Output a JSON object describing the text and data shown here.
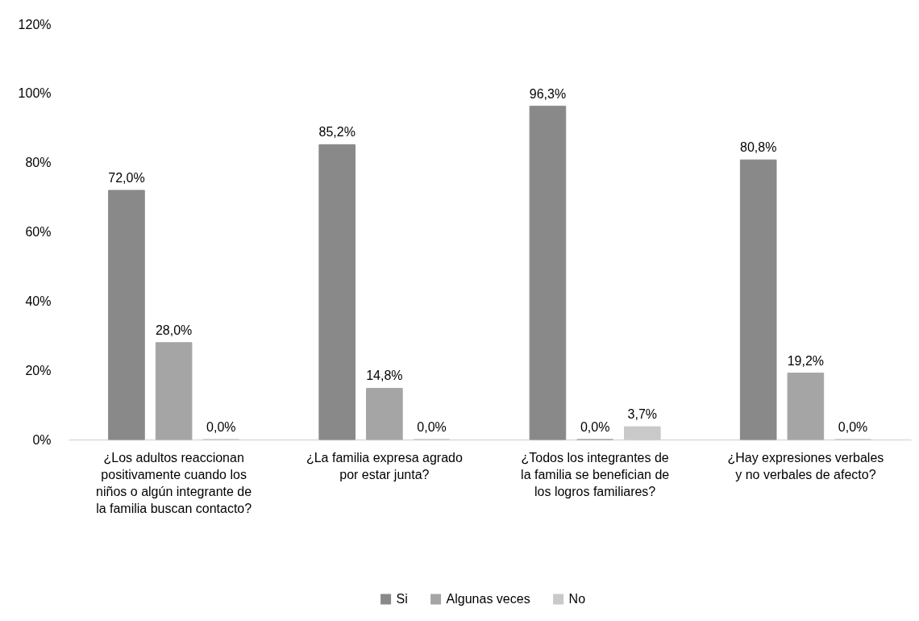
{
  "chart_data": {
    "type": "bar",
    "categories": [
      "¿Los adultos reaccionan positivamente cuando los niños o algún integrante de la familia buscan contacto?",
      "¿La familia  expresa agrado por estar junta?",
      "¿Todos los integrantes de la familia se benefician de los logros familiares?",
      "¿Hay expresiones verbales y no verbales de afecto?"
    ],
    "series": [
      {
        "name": "Si",
        "color": "#898989",
        "values": [
          72.0,
          85.2,
          96.3,
          80.8
        ],
        "value_labels": [
          "72,0%",
          "85,2%",
          "96,3%",
          "80,8%"
        ]
      },
      {
        "name": "Algunas veces",
        "color": "#a5a5a5",
        "values": [
          28.0,
          14.8,
          0.0,
          19.2
        ],
        "value_labels": [
          "28,0%",
          "14,8%",
          "0,0%",
          "19,2%"
        ]
      },
      {
        "name": "No",
        "color": "#c9c9c9",
        "values": [
          0.0,
          0.0,
          3.7,
          0.0
        ],
        "value_labels": [
          "0,0%",
          "0,0%",
          "3,7%",
          "0,0%"
        ]
      }
    ],
    "ylim": [
      0,
      120
    ],
    "yticks": [
      {
        "value": 0,
        "label": "0%"
      },
      {
        "value": 20,
        "label": "20%"
      },
      {
        "value": 40,
        "label": "40%"
      },
      {
        "value": 60,
        "label": "60%"
      },
      {
        "value": 80,
        "label": "80%"
      },
      {
        "value": 100,
        "label": "100%"
      },
      {
        "value": 120,
        "label": "120%"
      }
    ],
    "grid": false,
    "legend": "bottom"
  }
}
